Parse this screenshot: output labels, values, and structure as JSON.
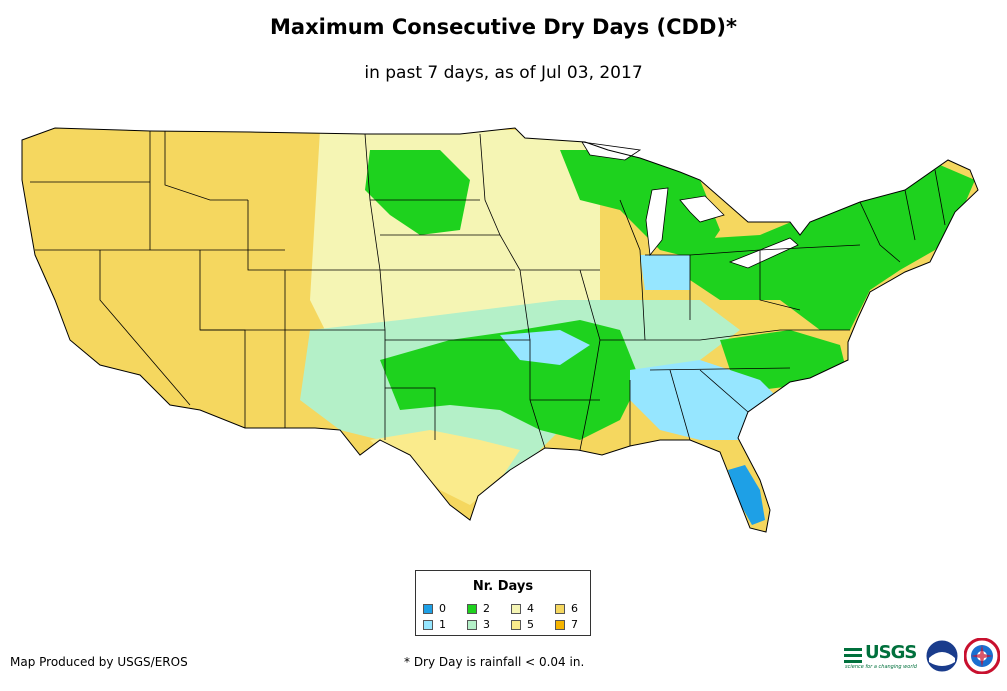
{
  "header": {
    "title": "Maximum Consecutive Dry Days (CDD)*",
    "subtitle": "in past 7 days, as of Jul 03, 2017"
  },
  "legend": {
    "title": "Nr. Days",
    "items": [
      {
        "label": "0",
        "color": "#1ea0e6"
      },
      {
        "label": "1",
        "color": "#96e6ff"
      },
      {
        "label": "2",
        "color": "#1ed21e"
      },
      {
        "label": "3",
        "color": "#b4f0c8"
      },
      {
        "label": "4",
        "color": "#f5f5b4"
      },
      {
        "label": "5",
        "color": "#faeb8c"
      },
      {
        "label": "6",
        "color": "#f5d75f"
      },
      {
        "label": "7",
        "color": "#f5b400"
      }
    ]
  },
  "footer": {
    "credit": "Map Produced by USGS/EROS",
    "note": "* Dry Day is rainfall < 0.04 in."
  },
  "logos": {
    "usgs": "USGS",
    "usgs_tagline": "science for a changing world",
    "noaa": "noaa-logo",
    "nws": "nws-logo"
  },
  "map": {
    "region": "Contiguous United States",
    "border_color": "#000000",
    "dominant_values": {
      "west": "6",
      "north_plains": "4",
      "east": "2",
      "southeast": "1",
      "texas_panhandle_region": "3"
    }
  }
}
